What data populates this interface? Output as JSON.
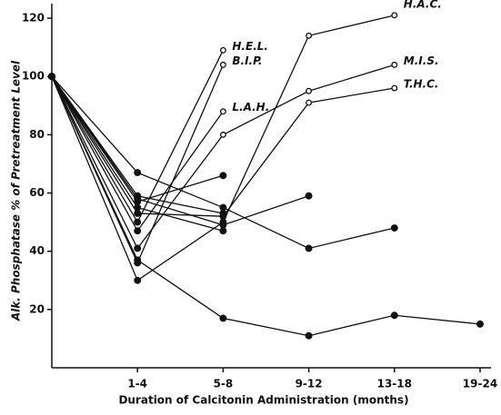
{
  "chart_data": {
    "type": "line",
    "x_label": "Duration of Calcitonin Administration (months)",
    "y_label": "Alk. Phosphatase % of Pretreatment Level",
    "categories": [
      null,
      "1-4",
      "5-8",
      "9-12",
      "13-18",
      "19-24"
    ],
    "ylim": [
      0,
      125
    ],
    "yticks": [
      20,
      40,
      60,
      80,
      100,
      120
    ],
    "color": "#111111",
    "series": [
      {
        "name": "H.A.C.",
        "values": [
          100,
          30,
          50,
          114,
          121,
          null
        ],
        "markers": [
          "filled",
          "filled",
          "filled",
          "open",
          "open",
          null
        ]
      },
      {
        "name": "M.I.S.",
        "values": [
          100,
          41,
          80,
          95,
          104,
          null
        ],
        "markers": [
          "filled",
          "filled",
          "open",
          "open",
          "open",
          null
        ]
      },
      {
        "name": "T.H.C.",
        "values": [
          100,
          53,
          52,
          91,
          96,
          null
        ],
        "markers": [
          "filled",
          "filled",
          "filled",
          "open",
          "open",
          null
        ]
      },
      {
        "name": "H.E.L.",
        "values": [
          100,
          50,
          109,
          null,
          null,
          null
        ],
        "markers": [
          "filled",
          "filled",
          "open",
          null,
          null,
          null
        ]
      },
      {
        "name": "B.I.P.",
        "values": [
          100,
          36,
          104,
          null,
          null,
          null
        ],
        "markers": [
          "filled",
          "filled",
          "open",
          null,
          null,
          null
        ]
      },
      {
        "name": "L.A.H.",
        "values": [
          100,
          47,
          88,
          null,
          null,
          null
        ],
        "markers": [
          "filled",
          "filled",
          "open",
          null,
          null,
          null
        ]
      },
      {
        "values": [
          100,
          57,
          66,
          null,
          null,
          null
        ],
        "markers": [
          "filled",
          "filled",
          "filled",
          null,
          null,
          null
        ]
      },
      {
        "values": [
          100,
          58,
          49,
          59,
          null,
          null
        ],
        "markers": [
          "filled",
          "filled",
          "filled",
          "filled",
          null,
          null
        ]
      },
      {
        "values": [
          100,
          67,
          55,
          41,
          48,
          null
        ],
        "markers": [
          "filled",
          "filled",
          "filled",
          "filled",
          "filled",
          null
        ]
      },
      {
        "values": [
          100,
          37,
          17,
          11,
          18,
          15
        ],
        "markers": [
          "filled",
          "filled",
          "filled",
          "filled",
          "filled",
          "filled"
        ]
      },
      {
        "values": [
          100,
          55,
          47,
          null,
          null,
          null
        ],
        "markers": [
          "filled",
          "filled",
          "filled",
          null,
          null,
          null
        ]
      },
      {
        "values": [
          100,
          59,
          53,
          null,
          null,
          null
        ],
        "markers": [
          "filled",
          "filled",
          "filled",
          null,
          null,
          null
        ]
      }
    ]
  }
}
